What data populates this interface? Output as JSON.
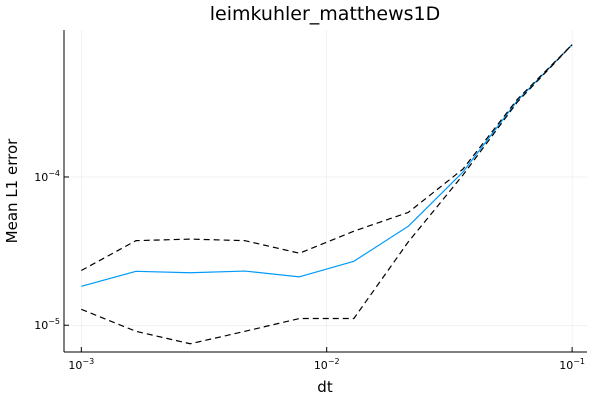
{
  "chart_data": {
    "type": "line",
    "title": "leimkuhler_matthews1D",
    "xlabel": "dt",
    "ylabel": "Mean L1 error",
    "xscale": "log",
    "yscale": "log",
    "xlim": [
      0.00085,
      0.115
    ],
    "ylim": [
      6.6e-06,
      0.00098
    ],
    "grid": true,
    "legend": "none",
    "x_ticks": [
      {
        "value": 0.001,
        "base": "10",
        "exp": "−3"
      },
      {
        "value": 0.01,
        "base": "10",
        "exp": "−2"
      },
      {
        "value": 0.1,
        "base": "10",
        "exp": "−1"
      }
    ],
    "y_ticks": [
      {
        "value": 1e-05,
        "base": "10",
        "exp": "−5"
      },
      {
        "value": 0.0001,
        "base": "10",
        "exp": "−4"
      }
    ],
    "x": [
      0.001,
      0.00167,
      0.00278,
      0.00464,
      0.00774,
      0.0129,
      0.0215,
      0.0359,
      0.0599,
      0.1
    ],
    "series": [
      {
        "role": "mean",
        "color": "#009af9",
        "style": "solid",
        "values": [
          1.83e-05,
          2.31e-05,
          2.26e-05,
          2.32e-05,
          2.12e-05,
          2.7e-05,
          4.65e-05,
          0.000108,
          0.000328,
          0.00078
        ]
      },
      {
        "role": "upper-bound",
        "color": "#000000",
        "style": "dashed",
        "values": [
          2.34e-05,
          3.72e-05,
          3.81e-05,
          3.72e-05,
          3.06e-05,
          4.31e-05,
          5.77e-05,
          0.000113,
          0.000335,
          0.00078
        ]
      },
      {
        "role": "lower-bound",
        "color": "#000000",
        "style": "dashed",
        "values": [
          1.28e-05,
          9.1e-06,
          7.5e-06,
          9.1e-06,
          1.11e-05,
          1.11e-05,
          3.65e-05,
          0.000103,
          0.000321,
          0.00078
        ]
      }
    ]
  }
}
